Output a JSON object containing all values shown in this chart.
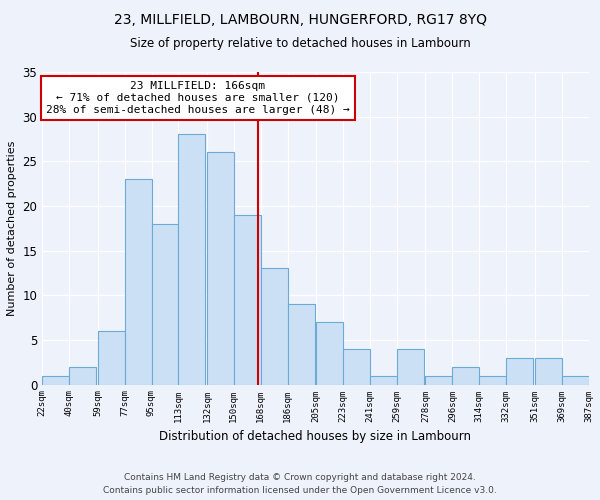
{
  "title": "23, MILLFIELD, LAMBOURN, HUNGERFORD, RG17 8YQ",
  "subtitle": "Size of property relative to detached houses in Lambourn",
  "xlabel": "Distribution of detached houses by size in Lambourn",
  "ylabel": "Number of detached properties",
  "bar_color": "#cce0f5",
  "bar_edge_color": "#6aaad4",
  "background_color": "#eef2fb",
  "grid_color": "#ffffff",
  "bins_left": [
    22,
    40,
    59,
    77,
    95,
    113,
    132,
    150,
    168,
    186,
    205,
    223,
    241,
    259,
    278,
    296,
    314,
    332,
    351,
    369
  ],
  "bin_width": 18,
  "bar_heights": [
    1,
    2,
    6,
    23,
    18,
    28,
    26,
    19,
    13,
    9,
    7,
    4,
    1,
    4,
    1,
    2,
    1,
    3,
    3,
    1
  ],
  "tick_labels": [
    "22sqm",
    "40sqm",
    "59sqm",
    "77sqm",
    "95sqm",
    "113sqm",
    "132sqm",
    "150sqm",
    "168sqm",
    "186sqm",
    "205sqm",
    "223sqm",
    "241sqm",
    "259sqm",
    "278sqm",
    "296sqm",
    "314sqm",
    "332sqm",
    "351sqm",
    "369sqm",
    "387sqm"
  ],
  "property_size": 166,
  "annotation_title": "23 MILLFIELD: 166sqm",
  "annotation_line1": "← 71% of detached houses are smaller (120)",
  "annotation_line2": "28% of semi-detached houses are larger (48) →",
  "vline_color": "#cc0000",
  "annotation_box_color": "#ffffff",
  "annotation_box_edge": "#cc0000",
  "ylim": [
    0,
    35
  ],
  "yticks": [
    0,
    5,
    10,
    15,
    20,
    25,
    30,
    35
  ],
  "footer1": "Contains HM Land Registry data © Crown copyright and database right 2024.",
  "footer2": "Contains public sector information licensed under the Open Government Licence v3.0."
}
